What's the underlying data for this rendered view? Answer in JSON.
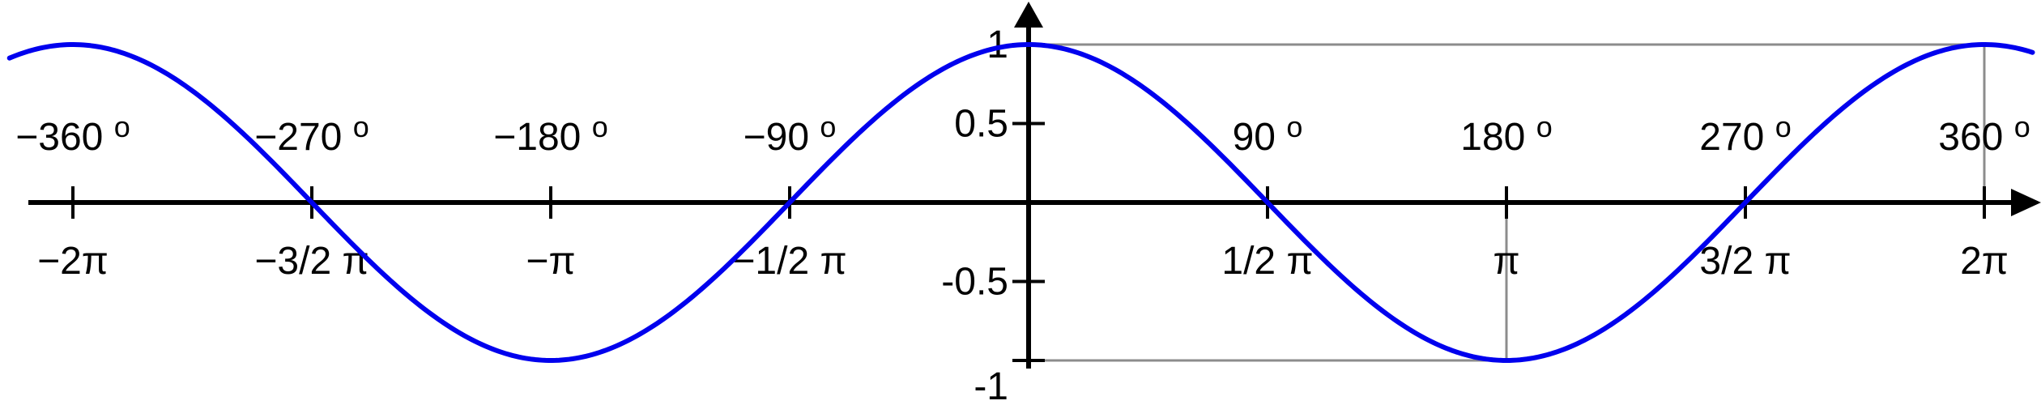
{
  "chart_data": {
    "type": "line",
    "function": "cos",
    "title": "",
    "xlabel": "",
    "ylabel": "",
    "xlim": [
      -6.7,
      6.6
    ],
    "ylim": [
      -1.1,
      1.1
    ],
    "x_ticks": [
      {
        "value": -6.283185,
        "label": "−2π",
        "degree": "−360",
        "deg_symbol": "o"
      },
      {
        "value": -4.712389,
        "label": "−3/2 π",
        "degree": "−270",
        "deg_symbol": "o"
      },
      {
        "value": -3.141593,
        "label": "−π",
        "degree": "−180",
        "deg_symbol": "o"
      },
      {
        "value": -1.570796,
        "label": "−1/2 π",
        "degree": "−90",
        "deg_symbol": "o"
      },
      {
        "value": 1.570796,
        "label": "1/2 π",
        "degree": "90",
        "deg_symbol": "o"
      },
      {
        "value": 3.141593,
        "label": "π",
        "degree": "180",
        "deg_symbol": "o"
      },
      {
        "value": 4.712389,
        "label": "3/2 π",
        "degree": "270",
        "deg_symbol": "o"
      },
      {
        "value": 6.283185,
        "label": "2π",
        "degree": "360",
        "deg_symbol": "o"
      }
    ],
    "y_ticks": [
      {
        "value": 1,
        "label": "1"
      },
      {
        "value": 0.5,
        "label": "0.5"
      },
      {
        "value": -0.5,
        "label": "-0.5"
      },
      {
        "value": -1,
        "label": "-1"
      }
    ],
    "series": [
      {
        "color": "#0000ee",
        "x_start": -6.7,
        "x_end": 6.6
      }
    ],
    "guide_lines": [
      {
        "x1": 0,
        "y1": 1,
        "x2": 6.283185,
        "y2": 1
      },
      {
        "x1": 6.283185,
        "y1": 1,
        "x2": 6.283185,
        "y2": 0
      },
      {
        "x1": 0,
        "y1": -1,
        "x2": 3.141593,
        "y2": -1
      },
      {
        "x1": 3.141593,
        "y1": -1,
        "x2": 3.141593,
        "y2": 0
      }
    ],
    "guide_color": "#8c8c8c",
    "axis_color": "#000000",
    "grid": false,
    "legend": "none"
  }
}
